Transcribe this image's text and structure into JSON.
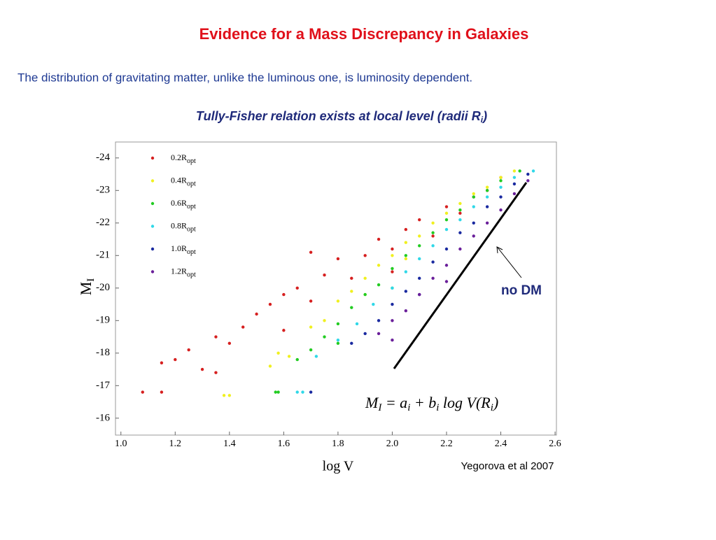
{
  "header": {
    "title": "Evidence for a Mass Discrepancy in Galaxies",
    "text": "The distribution of gravitating matter, unlike the luminous one,  is luminosity dependent."
  },
  "chart_data": {
    "type": "scatter",
    "subtitle": "Tully-Fisher relation exists at local level (radii R",
    "subtitle_sub": "i",
    "subtitle_end": ")",
    "xlabel": "log V",
    "ylabel": "M",
    "ylabel_sub": "I",
    "xlim": [
      0.98,
      2.605
    ],
    "ylim": [
      -15.48,
      -24.49
    ],
    "xticks": [
      {
        "value": 1,
        "label": "1.0"
      },
      1.2,
      1.4,
      1.6,
      1.8,
      {
        "value": 2,
        "label": "2.0"
      },
      2.2,
      2.4,
      2.6
    ],
    "yticks": [
      -24,
      -23,
      -22,
      -21,
      -20,
      -19,
      -18,
      -17,
      -16
    ],
    "legend": "top-left",
    "series": [
      {
        "name": "0.2R",
        "name_sub": "opt",
        "color": "#d62020",
        "x": [
          1.08,
          1.15,
          1.15,
          1.2,
          1.25,
          1.3,
          1.35,
          1.4,
          1.45,
          1.5,
          1.55,
          1.6,
          1.65,
          1.7,
          1.75,
          1.8,
          1.85,
          1.9,
          1.95,
          2.0,
          2.05,
          2.1,
          2.15,
          2.2,
          2.25,
          2.3,
          2.35,
          2.4,
          1.7,
          1.6,
          1.35,
          2.0
        ],
        "values": [
          -16.8,
          -16.8,
          -17.7,
          -17.8,
          -18.1,
          -17.5,
          -18.5,
          -18.3,
          -18.8,
          -19.2,
          -19.5,
          -19.8,
          -20.0,
          -19.6,
          -20.4,
          -20.9,
          -20.3,
          -21.0,
          -21.5,
          -21.2,
          -21.8,
          -22.1,
          -21.6,
          -22.5,
          -22.3,
          -22.8,
          -23.0,
          -23.4,
          -21.1,
          -18.7,
          -17.4,
          -20.5
        ]
      },
      {
        "name": "0.4R",
        "name_sub": "opt",
        "color": "#f0f020",
        "x": [
          1.38,
          1.4,
          1.55,
          1.58,
          1.62,
          1.7,
          1.75,
          1.8,
          1.85,
          1.9,
          1.95,
          2.0,
          2.05,
          2.1,
          2.15,
          2.2,
          2.25,
          2.3,
          2.35,
          2.4,
          2.45,
          1.9,
          2.05
        ],
        "values": [
          -16.7,
          -16.7,
          -17.6,
          -18.0,
          -17.9,
          -18.8,
          -19.0,
          -19.6,
          -19.9,
          -20.3,
          -20.7,
          -21.0,
          -21.4,
          -21.6,
          -22.0,
          -22.3,
          -22.6,
          -22.9,
          -23.1,
          -23.4,
          -23.6,
          -19.8,
          -20.9
        ]
      },
      {
        "name": "0.6R",
        "name_sub": "opt",
        "color": "#22cc22",
        "x": [
          1.57,
          1.58,
          1.65,
          1.7,
          1.75,
          1.8,
          1.85,
          1.9,
          1.95,
          2.0,
          2.05,
          2.1,
          2.15,
          2.2,
          2.25,
          2.3,
          2.35,
          2.4,
          2.47,
          1.8,
          2.0
        ],
        "values": [
          -16.8,
          -16.8,
          -17.8,
          -18.1,
          -18.5,
          -18.9,
          -19.4,
          -19.8,
          -20.1,
          -20.6,
          -21.0,
          -21.3,
          -21.7,
          -22.1,
          -22.4,
          -22.8,
          -23.0,
          -23.3,
          -23.6,
          -18.3,
          -20.0
        ]
      },
      {
        "name": "0.8R",
        "name_sub": "opt",
        "color": "#30d8e8",
        "x": [
          1.65,
          1.67,
          1.72,
          1.8,
          1.87,
          1.93,
          2.0,
          2.05,
          2.1,
          2.15,
          2.2,
          2.25,
          2.3,
          2.35,
          2.4,
          2.45,
          2.52
        ],
        "values": [
          -16.8,
          -16.8,
          -17.9,
          -18.4,
          -18.9,
          -19.5,
          -20.0,
          -20.5,
          -20.9,
          -21.3,
          -21.8,
          -22.1,
          -22.5,
          -22.8,
          -23.1,
          -23.4,
          -23.6
        ]
      },
      {
        "name": "1.0R",
        "name_sub": "opt",
        "color": "#1a2aa0",
        "x": [
          1.7,
          1.85,
          1.9,
          1.95,
          2.0,
          2.05,
          2.1,
          2.15,
          2.2,
          2.25,
          2.3,
          2.35,
          2.4,
          2.45,
          2.5,
          2.1
        ],
        "values": [
          -16.8,
          -18.3,
          -18.6,
          -19.0,
          -19.5,
          -19.9,
          -20.3,
          -20.8,
          -21.2,
          -21.7,
          -22.0,
          -22.5,
          -22.8,
          -23.2,
          -23.5,
          -19.8
        ]
      },
      {
        "name": "1.2R",
        "name_sub": "opt",
        "color": "#6a1f9a",
        "x": [
          1.95,
          2.0,
          2.05,
          2.1,
          2.15,
          2.2,
          2.25,
          2.3,
          2.35,
          2.4,
          2.45,
          2.5,
          2.0,
          2.2
        ],
        "values": [
          -18.6,
          -19.0,
          -19.3,
          -19.8,
          -20.3,
          -20.7,
          -21.2,
          -21.6,
          -22.0,
          -22.4,
          -22.9,
          -23.3,
          -18.4,
          -20.2
        ]
      }
    ],
    "equation": [
      "M",
      "I",
      " = a",
      "i",
      " + b",
      "i",
      " log V(R",
      "i",
      ")"
    ],
    "annotations": [
      "no DM",
      "Yegorova et al 2007"
    ]
  }
}
